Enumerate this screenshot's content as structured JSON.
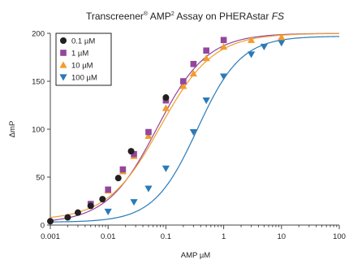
{
  "chart_data": {
    "type": "scatter",
    "title": {
      "text": "Transcreener",
      "sup1": "®",
      "text2": " AMP",
      "sup2": "2",
      "text3": " Assay on PHERAstar ",
      "italic": "FS"
    },
    "xlabel": "AMP µM",
    "ylabel": "ΔmP",
    "x_scale": "log",
    "xlim": [
      0.001,
      100
    ],
    "ylim": [
      0,
      200
    ],
    "x_ticks": [
      {
        "value": 0.001,
        "label": "0.001"
      },
      {
        "value": 0.01,
        "label": "0.01"
      },
      {
        "value": 0.1,
        "label": "0.1"
      },
      {
        "value": 1,
        "label": "1"
      },
      {
        "value": 10,
        "label": "10"
      },
      {
        "value": 100,
        "label": "100"
      }
    ],
    "y_ticks": [
      {
        "value": 0,
        "label": "0"
      },
      {
        "value": 50,
        "label": "50"
      },
      {
        "value": 100,
        "label": "100"
      },
      {
        "value": 150,
        "label": "150"
      },
      {
        "value": 200,
        "label": "200"
      }
    ],
    "grid": false,
    "legend_position": "top-left",
    "series": [
      {
        "name": "0.1 µM",
        "marker": "circle",
        "color": "#231f20",
        "x": [
          0.001,
          0.002,
          0.003,
          0.005,
          0.008,
          0.015,
          0.025,
          0.1
        ],
        "y": [
          4,
          8,
          13,
          20,
          27,
          49,
          77,
          133
        ]
      },
      {
        "name": "1 µM",
        "marker": "square",
        "color": "#93479b",
        "curve": {
          "bottom": 2,
          "top": 200,
          "ec50": 0.07,
          "hill": 1.0
        },
        "x": [
          0.005,
          0.01,
          0.018,
          0.028,
          0.05,
          0.1,
          0.2,
          0.3,
          0.5,
          1
        ],
        "y": [
          22,
          37,
          58,
          74,
          97,
          130,
          150,
          168,
          182,
          193
        ]
      },
      {
        "name": "10 µM",
        "marker": "triangle-up",
        "color": "#f39c2b",
        "curve": {
          "bottom": 5,
          "top": 200,
          "ec50": 0.08,
          "hill": 0.95
        },
        "x": [
          0.005,
          0.01,
          0.018,
          0.028,
          0.05,
          0.1,
          0.2,
          0.3,
          0.5,
          1,
          3,
          10
        ],
        "y": [
          22,
          36,
          56,
          72,
          93,
          122,
          145,
          158,
          174,
          186,
          193,
          196
        ]
      },
      {
        "name": "100 µM",
        "marker": "triangle-down",
        "color": "#2a7ab8",
        "curve": {
          "bottom": 3,
          "top": 197,
          "ec50": 0.35,
          "hill": 1.15
        },
        "x": [
          0.01,
          0.028,
          0.05,
          0.1,
          0.3,
          0.5,
          1,
          3,
          5,
          10
        ],
        "y": [
          14,
          24,
          38,
          59,
          97,
          130,
          155,
          178,
          186,
          190
        ]
      }
    ]
  }
}
